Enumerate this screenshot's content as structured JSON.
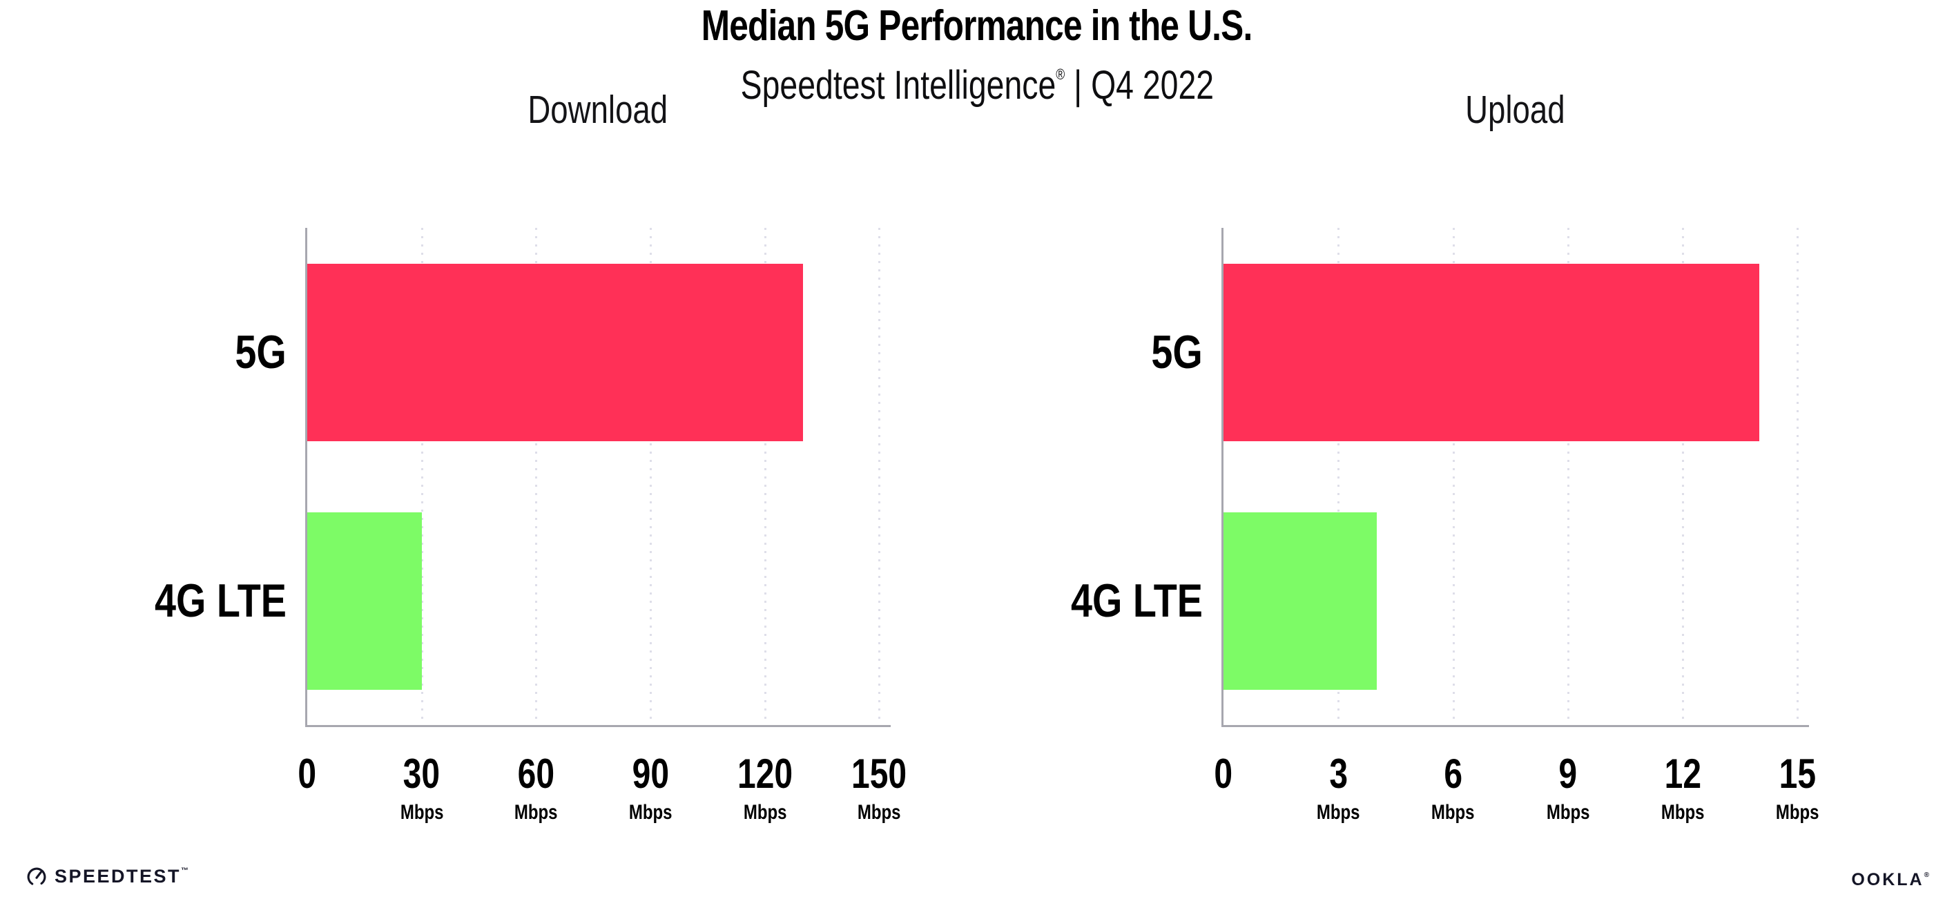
{
  "header": {
    "title": "Median 5G Performance in the U.S.",
    "brand": "Speedtest Intelligence",
    "reg": "®",
    "sep": " | ",
    "period": "Q4 2022"
  },
  "chart_data": [
    {
      "type": "bar",
      "orientation": "horizontal",
      "title": "Download",
      "categories": [
        "5G",
        "4G LTE"
      ],
      "values": [
        130,
        30
      ],
      "unit": "Mbps",
      "xticks": [
        0,
        30,
        60,
        90,
        120,
        150
      ],
      "xlim": [
        0,
        153
      ],
      "grid": "dotted-vertical",
      "bar_colors": [
        "#FF3057",
        "#7DFB66"
      ]
    },
    {
      "type": "bar",
      "orientation": "horizontal",
      "title": "Upload",
      "categories": [
        "5G",
        "4G LTE"
      ],
      "values": [
        14,
        4
      ],
      "unit": "Mbps",
      "xticks": [
        0,
        3,
        6,
        9,
        12,
        15
      ],
      "xlim": [
        0,
        15.3
      ],
      "grid": "dotted-vertical",
      "bar_colors": [
        "#FF3057",
        "#7DFB66"
      ]
    }
  ],
  "footer": {
    "speedtest": "SPEEDTEST",
    "speedtest_tm": "™",
    "ookla": "OOKLA",
    "ookla_reg": "®"
  },
  "colors": {
    "bar_5g": "#FF3057",
    "bar_4g_lte": "#7DFB66",
    "axis": "#A7A7AF",
    "gridline": "#DEDEE9",
    "text": "#000000",
    "logo": "#141526"
  }
}
